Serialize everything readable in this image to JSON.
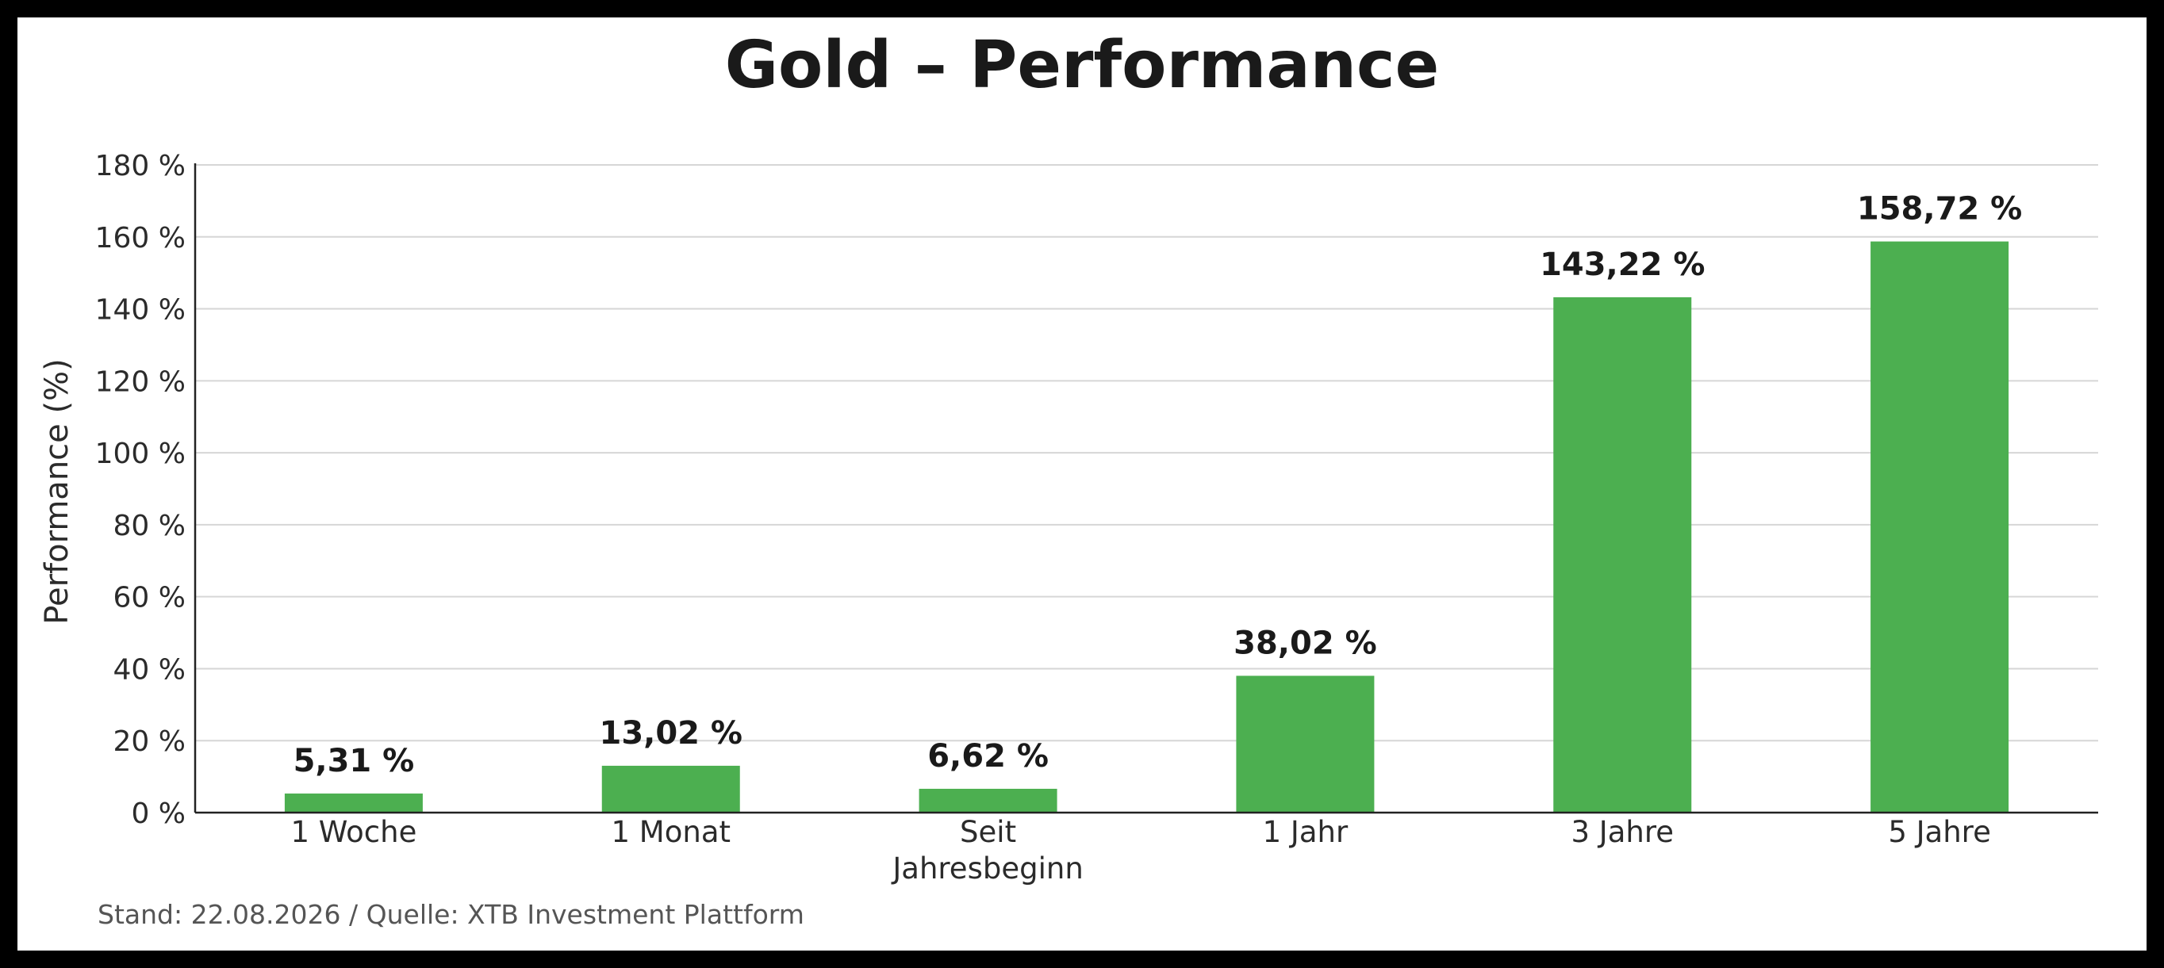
{
  "chart_data": {
    "type": "bar",
    "title": "Gold – Performance",
    "xlabel": "",
    "ylabel": "Performance (%)",
    "categories": [
      "1 Woche",
      "1 Monat",
      "Seit Jahresbeginn",
      "1 Jahr",
      "3 Jahre",
      "5 Jahre"
    ],
    "category_lines": [
      [
        "1 Woche"
      ],
      [
        "1 Monat"
      ],
      [
        "Seit",
        "Jahresbeginn"
      ],
      [
        "1 Jahr"
      ],
      [
        "3 Jahre"
      ],
      [
        "5 Jahre"
      ]
    ],
    "values": [
      5.31,
      13.02,
      6.62,
      38.02,
      143.22,
      158.72
    ],
    "value_labels": [
      "5,31 %",
      "13,02 %",
      "6,62 %",
      "38,02 %",
      "143,22 %",
      "158,72 %"
    ],
    "ylim": [
      0,
      180
    ],
    "yticks": [
      0,
      20,
      40,
      60,
      80,
      100,
      120,
      140,
      160,
      180
    ],
    "ytick_labels": [
      "0 %",
      "20 %",
      "40 %",
      "60 %",
      "80 %",
      "100 %",
      "120 %",
      "140 %",
      "160 %",
      "180 %"
    ],
    "grid": true,
    "legend": "none",
    "bar_color": "#4caf50",
    "grid_color": "#d6d6d6",
    "axis_color": "#222222"
  },
  "footer": {
    "source": "Stand: 22.08.2026 / Quelle: XTB Investment Plattform"
  }
}
